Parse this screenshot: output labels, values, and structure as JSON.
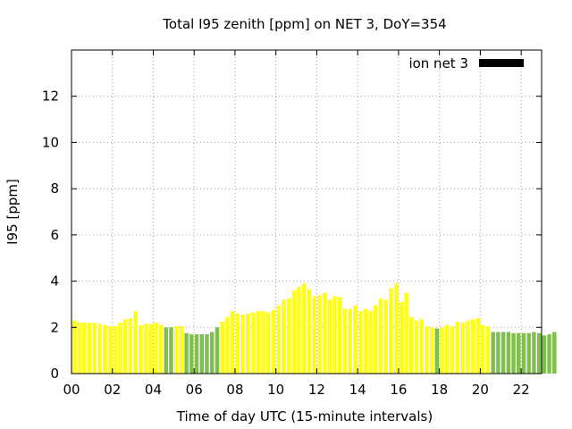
{
  "chart_data": {
    "type": "bar",
    "title": "Total I95 zenith [ppm] on NET 3, DoY=354",
    "xlabel": "Time of day UTC (15-minute intervals)",
    "ylabel": "I95 [ppm]",
    "ylim": [
      0,
      14
    ],
    "yticks": [
      0,
      2,
      4,
      6,
      8,
      10,
      12
    ],
    "ytick_labels": [
      "0",
      "2",
      "4",
      "6",
      "8",
      "10",
      "12"
    ],
    "xlim": [
      0,
      23.0
    ],
    "xticks": [
      0,
      2,
      4,
      6,
      8,
      10,
      12,
      14,
      16,
      18,
      20,
      22
    ],
    "xtick_labels": [
      "00",
      "02",
      "04",
      "06",
      "08",
      "10",
      "12",
      "14",
      "16",
      "18",
      "20",
      "22"
    ],
    "grid": true,
    "legend": {
      "label": "ion net 3",
      "color": "#000000",
      "position": "top-right"
    },
    "colors": {
      "high": "#ffff1a",
      "low": "#7fbf4d"
    },
    "bin_hours": 0.25,
    "series": [
      {
        "name": "ion net 3",
        "values": [
          2.3,
          2.2,
          2.2,
          2.2,
          2.2,
          2.15,
          2.1,
          2.05,
          2.05,
          2.2,
          2.35,
          2.4,
          2.7,
          2.1,
          2.15,
          2.15,
          2.2,
          2.1,
          2.0,
          2.0,
          2.05,
          2.05,
          1.75,
          1.7,
          1.7,
          1.7,
          1.7,
          1.8,
          2.0,
          2.25,
          2.45,
          2.7,
          2.6,
          2.55,
          2.6,
          2.65,
          2.7,
          2.7,
          2.65,
          2.75,
          2.95,
          3.2,
          3.25,
          3.6,
          3.75,
          3.9,
          3.65,
          3.35,
          3.4,
          3.5,
          3.2,
          3.35,
          3.3,
          2.8,
          2.8,
          2.95,
          2.7,
          2.8,
          2.7,
          2.95,
          3.25,
          3.2,
          3.7,
          3.9,
          3.1,
          3.5,
          2.45,
          2.3,
          2.35,
          2.05,
          2.0,
          1.95,
          2.0,
          2.1,
          2.05,
          2.25,
          2.2,
          2.3,
          2.35,
          2.4,
          2.1,
          2.05,
          1.8,
          1.8,
          1.8,
          1.8,
          1.75,
          1.75,
          1.75,
          1.75,
          1.8,
          1.75,
          1.65,
          1.7,
          1.8
        ],
        "levels": [
          "high",
          "high",
          "high",
          "high",
          "high",
          "high",
          "high",
          "high",
          "high",
          "high",
          "high",
          "high",
          "high",
          "high",
          "high",
          "high",
          "high",
          "high",
          "low",
          "low",
          "high",
          "high",
          "low",
          "low",
          "low",
          "low",
          "low",
          "low",
          "low",
          "high",
          "high",
          "high",
          "high",
          "high",
          "high",
          "high",
          "high",
          "high",
          "high",
          "high",
          "high",
          "high",
          "high",
          "high",
          "high",
          "high",
          "high",
          "high",
          "high",
          "high",
          "high",
          "high",
          "high",
          "high",
          "high",
          "high",
          "high",
          "high",
          "high",
          "high",
          "high",
          "high",
          "high",
          "high",
          "high",
          "high",
          "high",
          "high",
          "high",
          "high",
          "high",
          "low",
          "high",
          "high",
          "high",
          "high",
          "high",
          "high",
          "high",
          "high",
          "high",
          "high",
          "low",
          "low",
          "low",
          "low",
          "low",
          "low",
          "low",
          "low",
          "low",
          "low",
          "low",
          "low",
          "low"
        ]
      }
    ]
  }
}
